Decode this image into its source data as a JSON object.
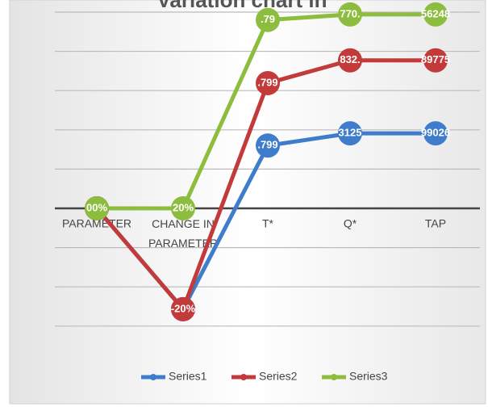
{
  "chart_data": {
    "type": "line",
    "title": "Variation chart in",
    "categories": [
      "PARAMETER",
      "CHANGE IN PARAMETER",
      "T*",
      "Q*",
      "TAP"
    ],
    "series": [
      {
        "name": "Series1",
        "color": "#3f7ccb",
        "values": [
          0,
          -2.57,
          1.6,
          1.91,
          1.91
        ],
        "value_labels": [
          null,
          "-20%",
          ".799",
          "3125",
          "99026"
        ]
      },
      {
        "name": "Series2",
        "color": "#c23a3a",
        "values": [
          0,
          -2.57,
          3.19,
          3.77,
          3.77
        ],
        "value_labels": [
          null,
          "-20%",
          ".799",
          "832.",
          "89775"
        ]
      },
      {
        "name": "Series3",
        "color": "#8dbd3e",
        "values": [
          0,
          0,
          4.8,
          4.94,
          4.94
        ],
        "value_labels": [
          "00%",
          "20%",
          ".79",
          "770.",
          "56248"
        ]
      }
    ],
    "ylim": [
      -3,
      5.3
    ],
    "yticks": [
      -3,
      -2,
      -1,
      0,
      1,
      2,
      3,
      4,
      5
    ],
    "grid": true,
    "legend": "bottom"
  }
}
